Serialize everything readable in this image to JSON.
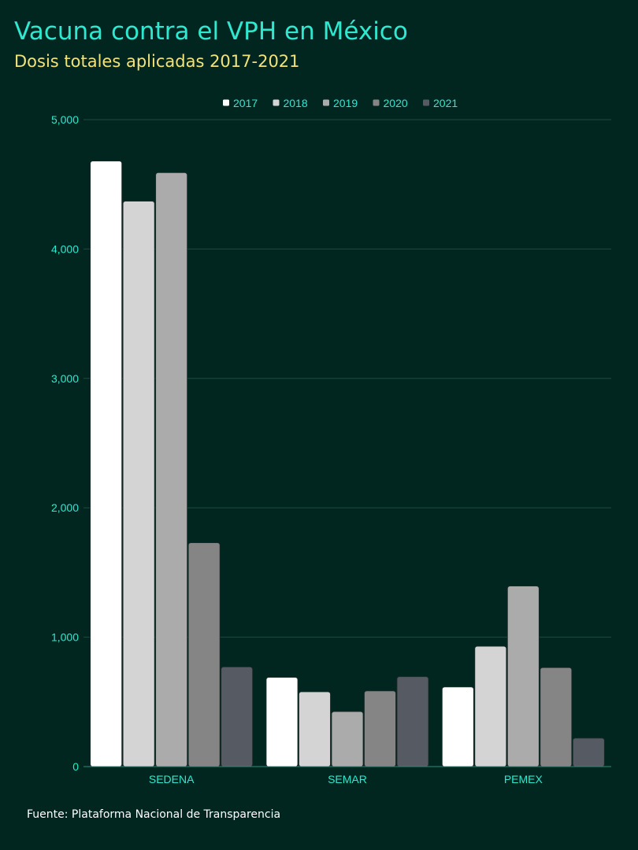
{
  "header": {
    "title": "Vacuna contra el VPH en México",
    "subtitle": "Dosis totales aplicadas 2017-2021"
  },
  "footer": {
    "source": "Fuente: Plataforma Nacional de Transparencia"
  },
  "colors": {
    "background": "#012620",
    "title": "#2ee8d0",
    "subtitle": "#f2e27a",
    "axis_text": "#2ee8d0",
    "grid": "#1f4a40"
  },
  "chart_data": {
    "type": "bar",
    "title": "Vacuna contra el VPH en México",
    "subtitle": "Dosis totales aplicadas 2017-2021",
    "xlabel": "",
    "ylabel": "",
    "categories": [
      "SEDENA",
      "SEMAR",
      "PEMEX"
    ],
    "ylim": [
      0,
      5000
    ],
    "yticks": [
      0,
      1000,
      2000,
      3000,
      4000,
      5000
    ],
    "ytick_labels": [
      "0",
      "1,000",
      "2,000",
      "3,000",
      "4,000",
      "5,000"
    ],
    "grid": true,
    "legend_position": "top-center",
    "series": [
      {
        "name": "2017",
        "color": "#ffffff",
        "values": [
          4680,
          690,
          615
        ]
      },
      {
        "name": "2018",
        "color": "#d4d4d4",
        "values": [
          4370,
          578,
          930
        ]
      },
      {
        "name": "2019",
        "color": "#ababab",
        "values": [
          4590,
          425,
          1395
        ]
      },
      {
        "name": "2020",
        "color": "#858585",
        "values": [
          1730,
          585,
          765
        ]
      },
      {
        "name": "2021",
        "color": "#555a63",
        "values": [
          770,
          695,
          220
        ]
      }
    ]
  }
}
